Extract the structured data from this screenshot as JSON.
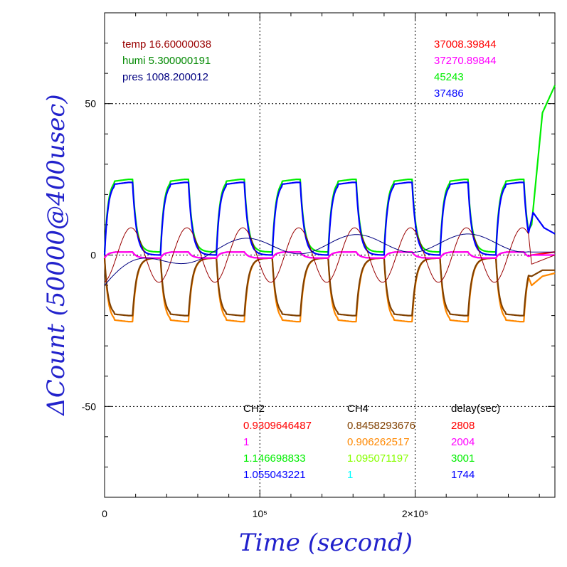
{
  "chart_data": {
    "type": "line",
    "xlabel": "Time (second)",
    "ylabel": "ΔCount (50000@400usec)",
    "xlim": [
      0,
      290000
    ],
    "ylim": [
      -80,
      80
    ],
    "grid": true,
    "x_ticks": [
      {
        "value": 0,
        "label": "0"
      },
      {
        "value": 100000,
        "label": "10⁵"
      },
      {
        "value": 200000,
        "label": "2×10⁵"
      }
    ],
    "y_ticks": [
      {
        "value": 50,
        "label": "50"
      },
      {
        "value": 0,
        "label": "0"
      },
      {
        "value": -50,
        "label": "-50"
      }
    ],
    "env_readout": [
      {
        "text": "temp 16.60000038",
        "color": "#990000"
      },
      {
        "text": "humi 5.300000191",
        "color": "#008800"
      },
      {
        "text": "pres 1008.200012",
        "color": "#000080"
      }
    ],
    "channel_readout": [
      {
        "text": "37008.39844",
        "color": "#ff0000"
      },
      {
        "text": "37270.89844",
        "color": "#ff00ff"
      },
      {
        "text": "45243",
        "color": "#00ee00"
      },
      {
        "text": "37486",
        "color": "#0000ff"
      }
    ],
    "table": {
      "headers": [
        "CH2",
        "CH4",
        "delay(sec)"
      ],
      "rows": [
        {
          "ch2": "0.9309646487",
          "ch2_color": "#ff0000",
          "ch4": "0.8458293676",
          "ch4_color": "#804000",
          "delay": "2808",
          "delay_color": "#ff0000"
        },
        {
          "ch2": "1",
          "ch2_color": "#ff00ff",
          "ch4": "0.906262517",
          "ch4_color": "#ff8800",
          "delay": "2004",
          "delay_color": "#ff00ff"
        },
        {
          "ch2": "1.146698833",
          "ch2_color": "#00ee00",
          "ch4": "1.095071197",
          "ch4_color": "#88ff00",
          "delay": "3001",
          "delay_color": "#00ee00"
        },
        {
          "ch2": "1.055043221",
          "ch2_color": "#0000ff",
          "ch4": "1",
          "ch4_color": "#00ffff",
          "delay": "1744",
          "delay_color": "#0000ff"
        }
      ]
    },
    "period": 36000,
    "series": [
      {
        "color": "#00ee00",
        "peak": 25,
        "trough": 1,
        "phase": 0,
        "tail": [
          [
            275000,
            10
          ],
          [
            282000,
            47
          ],
          [
            290000,
            56
          ]
        ]
      },
      {
        "color": "#0000ff",
        "peak": 24,
        "trough": 0,
        "phase": 0,
        "tail": [
          [
            276000,
            14
          ],
          [
            283000,
            9
          ],
          [
            290000,
            7
          ]
        ]
      },
      {
        "color": "#ff8800",
        "peak": -22,
        "trough": -1,
        "phase": 0,
        "tail": [
          [
            275000,
            -10
          ],
          [
            282000,
            -7
          ],
          [
            290000,
            -6
          ]
        ]
      },
      {
        "color": "#804000",
        "peak": -20,
        "trough": -1,
        "phase": 0,
        "tail": [
          [
            275000,
            -7
          ],
          [
            282000,
            -5
          ],
          [
            290000,
            -5
          ]
        ]
      },
      {
        "color": "#ff0000",
        "peak": 1,
        "trough": -1,
        "phase": 0,
        "tail": [
          [
            275000,
            0
          ],
          [
            290000,
            1
          ]
        ]
      },
      {
        "color": "#ff00ff",
        "peak": 1,
        "trough": -1,
        "phase": 0,
        "tail": [
          [
            275000,
            0
          ],
          [
            290000,
            0
          ]
        ]
      },
      {
        "color": "#990000",
        "amp": 9,
        "phase": 8000,
        "tail": [
          [
            275000,
            -3
          ],
          [
            290000,
            0
          ]
        ]
      },
      {
        "color": "#000080",
        "drift": true,
        "tail": [
          [
            275000,
            1
          ],
          [
            290000,
            1
          ]
        ]
      }
    ]
  }
}
